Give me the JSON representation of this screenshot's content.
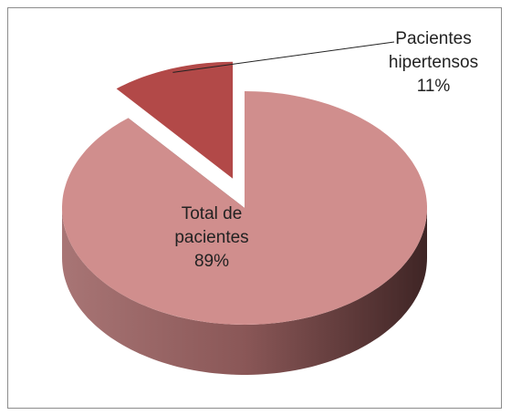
{
  "chart_data": {
    "type": "pie",
    "categories": [
      "Total de pacientes",
      "Pacientes hipertensos"
    ],
    "values": [
      89,
      11
    ],
    "value_labels": [
      "89%",
      "11%"
    ],
    "colors": [
      "#d08e8d",
      "#b24948"
    ]
  }
}
